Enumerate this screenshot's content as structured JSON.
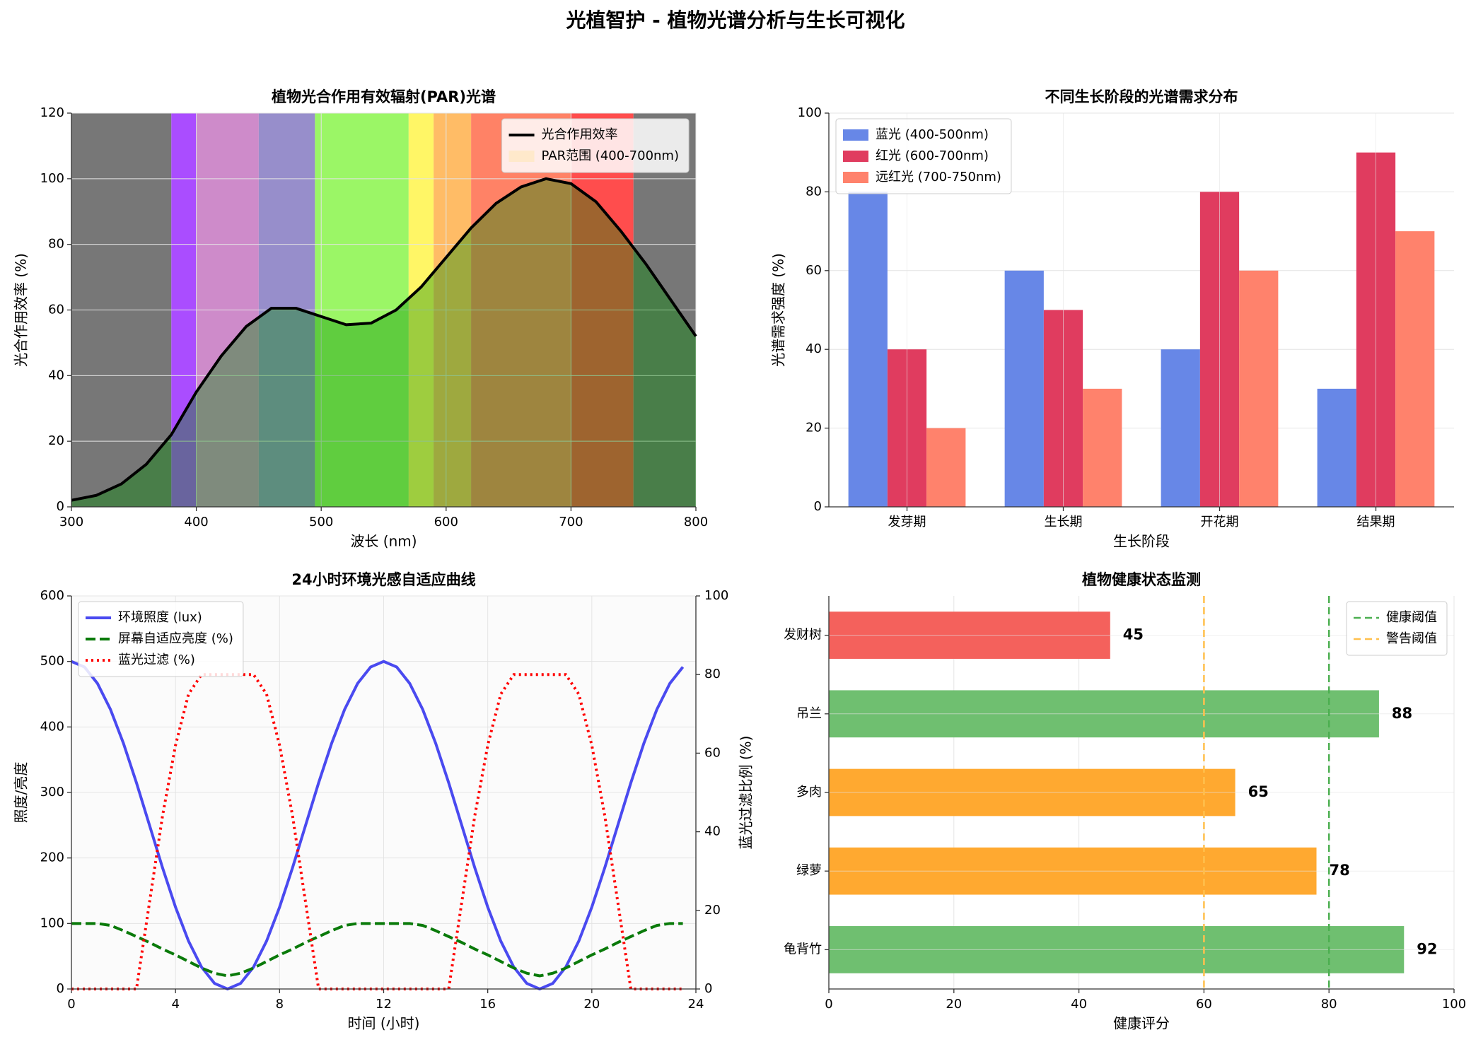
{
  "title": "光植智护 - 植物光谱分析与生长可视化",
  "chart_data": [
    {
      "type": "spectrum",
      "title": "植物光合作用有效辐射(PAR)光谱",
      "x_label": "波长 (nm)",
      "y_label": "光合作用效率 (%)",
      "x": [
        300,
        320,
        340,
        360,
        380,
        400,
        420,
        440,
        460,
        480,
        500,
        520,
        540,
        560,
        580,
        600,
        620,
        640,
        660,
        680,
        700,
        720,
        740,
        760,
        780,
        800
      ],
      "series": [
        {
          "name": "光合作用效率",
          "color": "#000000",
          "values": [
            2,
            3.5,
            7,
            13,
            22,
            35,
            46,
            55,
            60.5,
            60.5,
            58,
            55.5,
            56,
            60,
            67,
            76,
            85,
            92.5,
            97.5,
            100,
            98.5,
            93,
            84,
            74,
            63,
            52
          ]
        }
      ],
      "fill_color": "rgba(0,140,0,0.38)",
      "bands": [
        {
          "start": 300,
          "end": 380,
          "color": "#777777"
        },
        {
          "start": 380,
          "end": 400,
          "color": "#aa4dff"
        },
        {
          "start": 400,
          "end": 450,
          "color": "#b45be6"
        },
        {
          "start": 450,
          "end": 495,
          "color": "#6060e8"
        },
        {
          "start": 495,
          "end": 570,
          "color": "#66ff4d"
        },
        {
          "start": 570,
          "end": 590,
          "color": "#ffff4d"
        },
        {
          "start": 590,
          "end": 620,
          "color": "#ffa64d"
        },
        {
          "start": 620,
          "end": 750,
          "color": "#ff4d4d"
        },
        {
          "start": 750,
          "end": 800,
          "color": "#777777"
        }
      ],
      "par_range": {
        "name": "PAR范围 (400-700nm)",
        "start": 400,
        "end": 700,
        "color": "rgba(255,230,150,0.35)"
      },
      "xlim": [
        300,
        800
      ],
      "xticks": [
        300,
        400,
        500,
        600,
        700,
        800
      ],
      "ylim": [
        0,
        120
      ],
      "yticks": [
        0,
        20,
        40,
        60,
        80,
        100,
        120
      ],
      "grid": true,
      "legend": "upper-right"
    },
    {
      "type": "bar",
      "title": "不同生长阶段的光谱需求分布",
      "x_label": "生长阶段",
      "y_label": "光谱需求强度 (%)",
      "categories": [
        "发芽期",
        "生长期",
        "开花期",
        "结果期"
      ],
      "series": [
        {
          "name": "蓝光 (400-500nm)",
          "color": "#6787e7",
          "values": [
            80,
            60,
            40,
            30
          ]
        },
        {
          "name": "红光 (600-700nm)",
          "color": "#e03c5f",
          "values": [
            40,
            50,
            80,
            90
          ]
        },
        {
          "name": "远红光 (700-750nm)",
          "color": "#ff826c",
          "values": [
            20,
            30,
            60,
            70
          ]
        }
      ],
      "ylim": [
        0,
        100
      ],
      "yticks": [
        0,
        20,
        40,
        60,
        80,
        100
      ],
      "grid": true,
      "legend": "upper-left"
    },
    {
      "type": "line",
      "title": "24小时环境光感自适应曲线",
      "x_label": "时间 (小时)",
      "y_label": "照度/亮度",
      "y2_label": "蓝光过滤比例 (%)",
      "y2_label_color": "#ff0000",
      "x": [
        0,
        0.5,
        1,
        1.5,
        2,
        2.5,
        3,
        3.5,
        4,
        4.5,
        5,
        5.5,
        6,
        6.5,
        7,
        7.5,
        8,
        8.5,
        9,
        9.5,
        10,
        10.5,
        11,
        11.5,
        12,
        12.5,
        13,
        13.5,
        14,
        14.5,
        15,
        15.5,
        16,
        16.5,
        17,
        17.5,
        18,
        18.5,
        19,
        19.5,
        20,
        20.5,
        21,
        21.5,
        22,
        22.5,
        23,
        23.5
      ],
      "series": [
        {
          "name": "环境照度 (lux)",
          "color": "#4a4af0",
          "style": "solid",
          "values": [
            500,
            491.5,
            466.5,
            426.8,
            375,
            314.7,
            250,
            185.3,
            125,
            73.2,
            33.5,
            8.5,
            0,
            8.5,
            33.5,
            73.2,
            125,
            185.3,
            250,
            314.7,
            375,
            426.8,
            466.5,
            491.5,
            500,
            491.5,
            466.5,
            426.8,
            375,
            314.7,
            250,
            185.3,
            125,
            73.2,
            33.5,
            8.5,
            0,
            8.5,
            33.5,
            73.2,
            125,
            185.3,
            250,
            314.7,
            375,
            426.8,
            466.5,
            491.5
          ]
        },
        {
          "name": "屏幕自适应亮度 (%)",
          "color": "#0a7a0a",
          "style": "dashed",
          "values": [
            100,
            100,
            100,
            97,
            89,
            80,
            71,
            61,
            52,
            42,
            32,
            24,
            20,
            24,
            32,
            42,
            52,
            61,
            71,
            80,
            89,
            97,
            100,
            100,
            100,
            100,
            100,
            97,
            89,
            80,
            71,
            61,
            52,
            42,
            32,
            24,
            20,
            24,
            32,
            42,
            52,
            61,
            71,
            80,
            89,
            97,
            100,
            100
          ]
        },
        {
          "name": "蓝光过滤 (%)",
          "color": "#ff0000",
          "style": "dotted",
          "axis": "y2",
          "values": [
            0,
            0,
            0,
            0,
            0,
            0,
            22,
            44,
            62,
            75,
            80,
            80,
            80,
            80,
            80,
            75,
            62,
            44,
            22,
            0,
            0,
            0,
            0,
            0,
            0,
            0,
            0,
            0,
            0,
            0,
            22,
            44,
            62,
            75,
            80,
            80,
            80,
            80,
            80,
            75,
            62,
            44,
            22,
            0,
            0,
            0,
            0,
            0
          ]
        }
      ],
      "xlim": [
        0,
        24
      ],
      "xticks": [
        0,
        4,
        8,
        12,
        16,
        20,
        24
      ],
      "ylim": [
        0,
        600
      ],
      "yticks": [
        0,
        100,
        200,
        300,
        400,
        500,
        600
      ],
      "y2lim": [
        0,
        100
      ],
      "y2ticks": [
        0,
        20,
        40,
        60,
        80,
        100
      ],
      "grid": true,
      "legend": "upper-left"
    },
    {
      "type": "hbar",
      "title": "植物健康状态监测",
      "x_label": "健康评分",
      "categories": [
        "发财树",
        "吊兰",
        "多肉",
        "绿萝",
        "龟背竹"
      ],
      "values": [
        45,
        88,
        65,
        78,
        92
      ],
      "colors": [
        "#f4615c",
        "#6fbf70",
        "#ffa930",
        "#ffa930",
        "#6fbf70"
      ],
      "thresholds": [
        {
          "name": "健康阈值",
          "value": 80,
          "color": "#4caf50"
        },
        {
          "name": "警告阈值",
          "value": 60,
          "color": "#ffc04d"
        }
      ],
      "xlim": [
        0,
        100
      ],
      "xticks": [
        0,
        20,
        40,
        60,
        80,
        100
      ],
      "grid": true,
      "legend": "upper-right"
    }
  ]
}
